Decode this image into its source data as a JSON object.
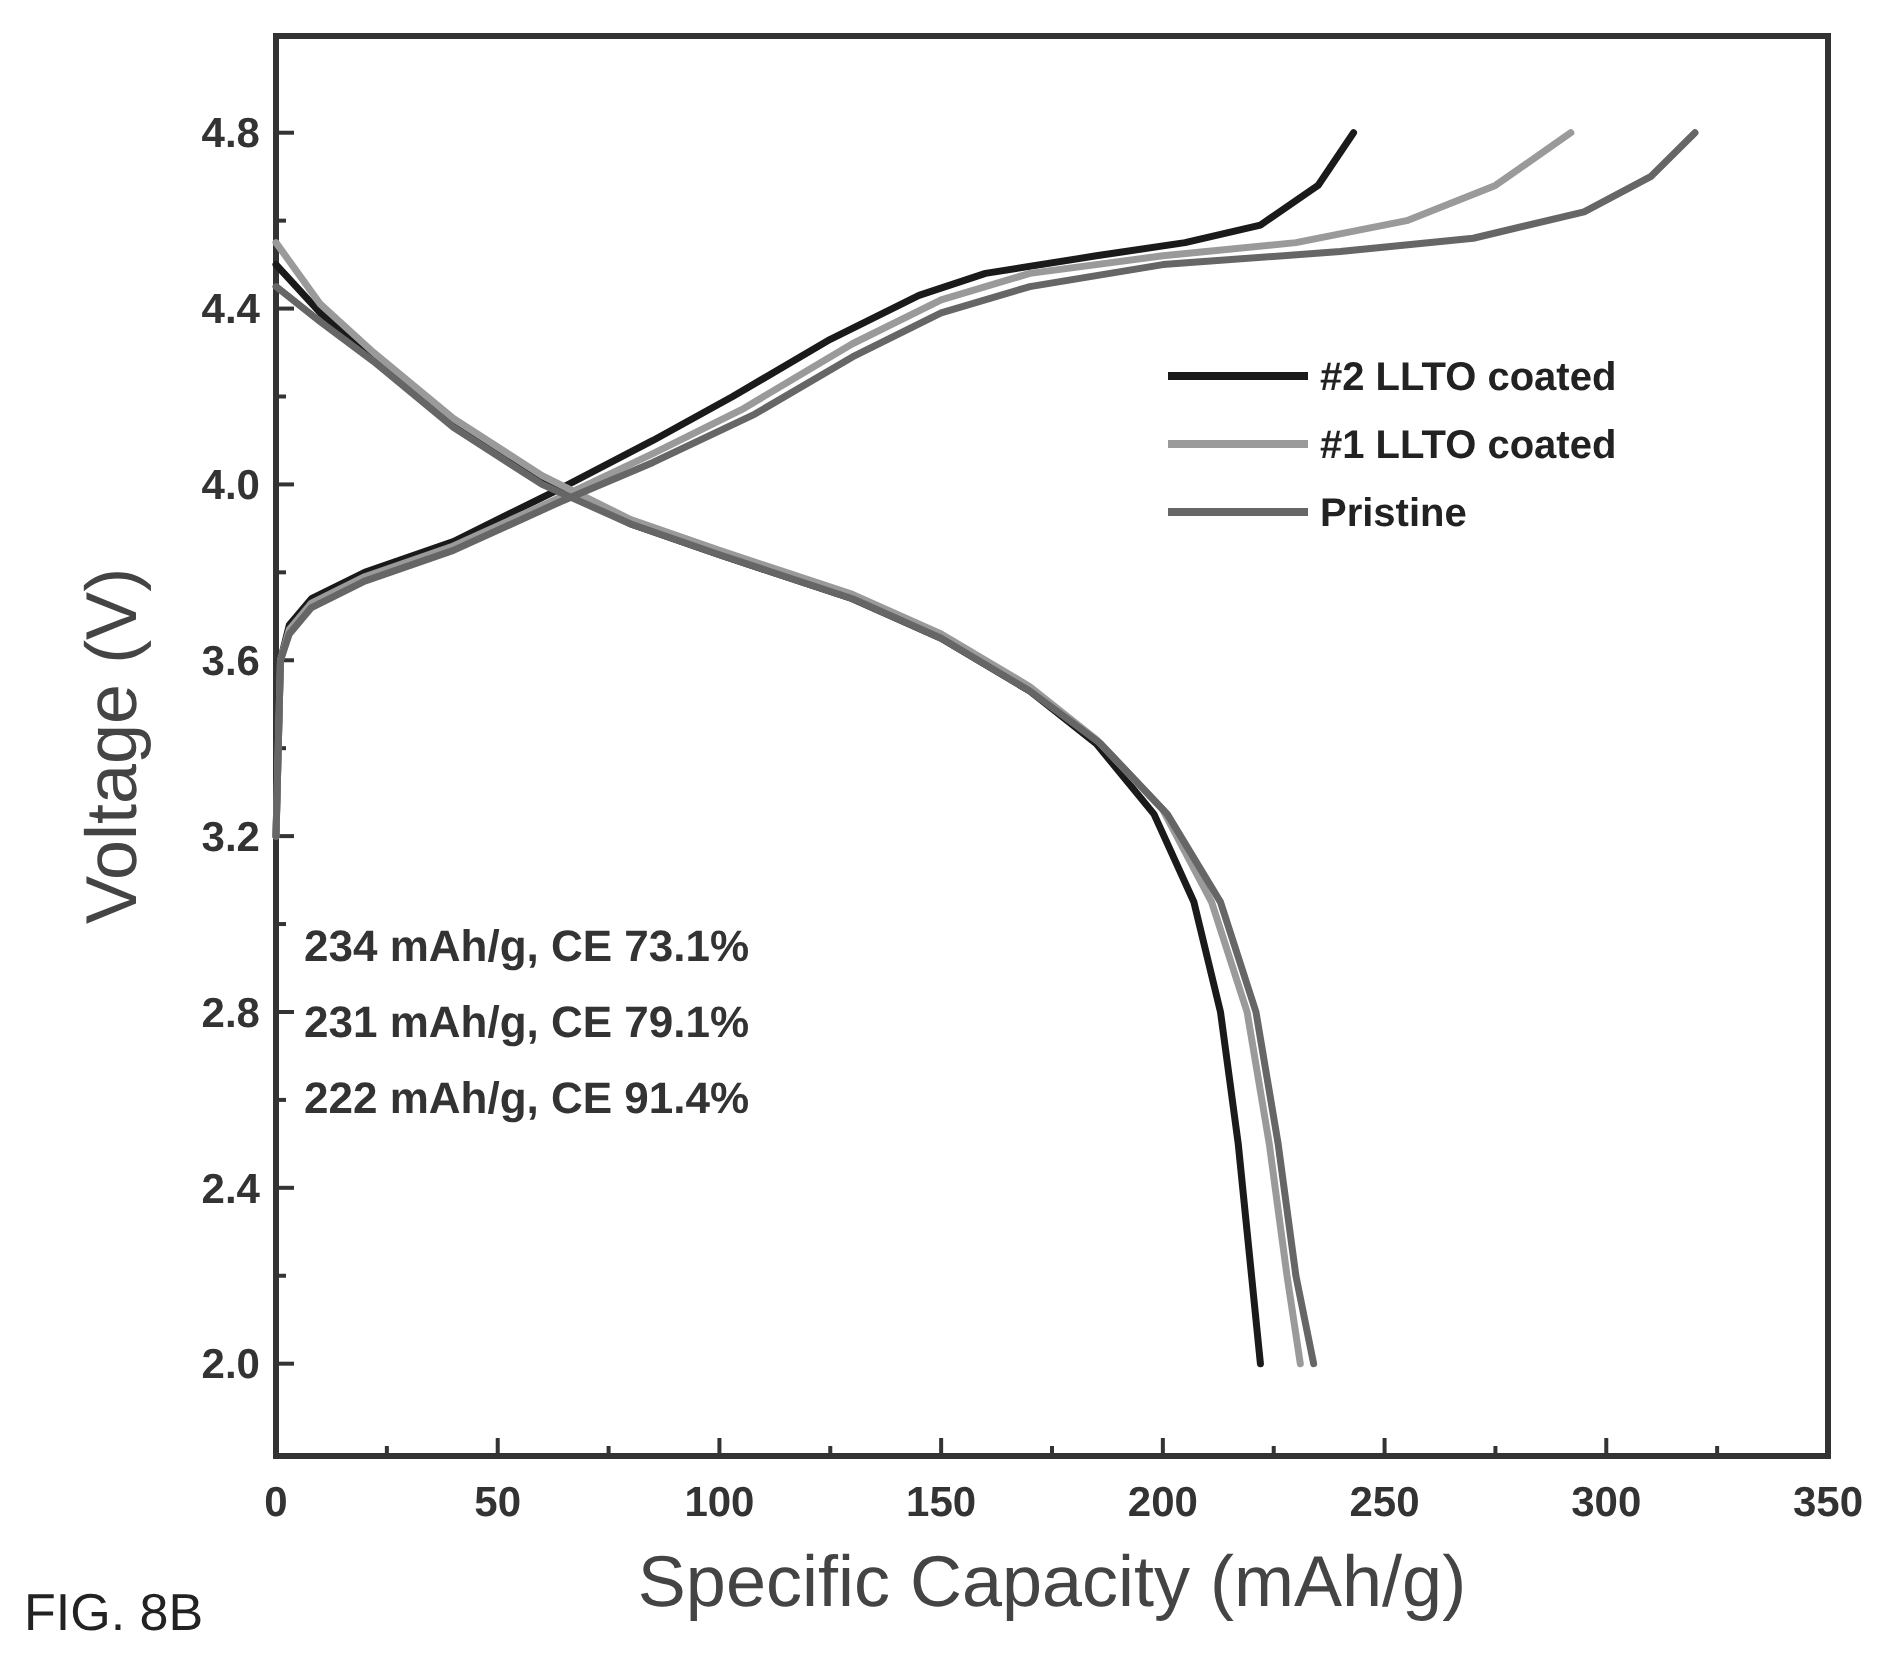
{
  "chart_data": {
    "type": "line",
    "xlabel": "Specific Capacity (mAh/g)",
    "ylabel": "Voltage (V)",
    "xlim": [
      0,
      350
    ],
    "ylim": [
      1.79,
      5.02
    ],
    "xticks": [
      0,
      {
        "value": 25,
        "label": null
      },
      50,
      {
        "value": 75,
        "label": null
      },
      100,
      {
        "value": 125,
        "label": null
      },
      150,
      {
        "value": 175,
        "label": null
      },
      200,
      {
        "value": 225,
        "label": null
      },
      250,
      {
        "value": 275,
        "label": null
      },
      300,
      {
        "value": 325,
        "label": null
      },
      350
    ],
    "yticks": [
      {
        "value": 2.0,
        "label": "2.0"
      },
      {
        "value": 2.2,
        "label": null
      },
      {
        "value": 2.4,
        "label": "2.4"
      },
      {
        "value": 2.6,
        "label": null
      },
      {
        "value": 2.8,
        "label": "2.8"
      },
      {
        "value": 3.0,
        "label": null
      },
      {
        "value": 3.2,
        "label": "3.2"
      },
      {
        "value": 3.4,
        "label": null
      },
      {
        "value": 3.6,
        "label": "3.6"
      },
      {
        "value": 3.8,
        "label": null
      },
      {
        "value": 4.0,
        "label": "4.0"
      },
      {
        "value": 4.2,
        "label": null
      },
      {
        "value": 4.4,
        "label": "4.4"
      },
      {
        "value": 4.6,
        "label": null
      },
      {
        "value": 4.8,
        "label": "4.8"
      }
    ],
    "grid": false,
    "legend": "top right",
    "line_style": "solid",
    "marker": "none",
    "series": [
      {
        "name": "#2 LLTO coated",
        "color": "#1a1a1a",
        "x": [
          0,
          1,
          3,
          8,
          20,
          40,
          64,
          85,
          103,
          125,
          145,
          160,
          185,
          205,
          222,
          235,
          243,
          null,
          0,
          10,
          22,
          40,
          60,
          80,
          100,
          130,
          150,
          170,
          185,
          198,
          207,
          213,
          217,
          220,
          222
        ],
        "values": [
          3.2,
          3.6,
          3.68,
          3.74,
          3.8,
          3.87,
          3.99,
          4.1,
          4.2,
          4.33,
          4.43,
          4.48,
          4.52,
          4.55,
          4.59,
          4.68,
          4.8,
          null,
          4.5,
          4.39,
          4.29,
          4.14,
          4.01,
          3.91,
          3.84,
          3.74,
          3.65,
          3.53,
          3.41,
          3.25,
          3.05,
          2.8,
          2.5,
          2.2,
          2.0
        ]
      },
      {
        "name": "#1 LLTO coated",
        "color": "#9a9a9a",
        "x": [
          0,
          1,
          3,
          8,
          20,
          40,
          64,
          85,
          105,
          130,
          150,
          170,
          200,
          230,
          255,
          275,
          292,
          null,
          0,
          10,
          22,
          40,
          60,
          80,
          100,
          130,
          150,
          170,
          185,
          200,
          211,
          219,
          224,
          228,
          231
        ],
        "values": [
          3.2,
          3.6,
          3.67,
          3.73,
          3.79,
          3.86,
          3.97,
          4.07,
          4.17,
          4.32,
          4.42,
          4.48,
          4.52,
          4.55,
          4.6,
          4.68,
          4.8,
          null,
          4.55,
          4.41,
          4.3,
          4.15,
          4.02,
          3.92,
          3.85,
          3.75,
          3.66,
          3.54,
          3.42,
          3.26,
          3.05,
          2.8,
          2.5,
          2.2,
          2.0
        ]
      },
      {
        "name": "Pristine",
        "color": "#666666",
        "x": [
          0,
          1,
          3,
          8,
          20,
          40,
          64,
          85,
          108,
          130,
          150,
          170,
          200,
          240,
          270,
          295,
          310,
          320,
          null,
          0,
          10,
          22,
          40,
          60,
          80,
          100,
          130,
          150,
          170,
          186,
          201,
          213,
          221,
          226,
          230,
          234
        ],
        "values": [
          3.2,
          3.6,
          3.66,
          3.72,
          3.78,
          3.85,
          3.96,
          4.05,
          4.16,
          4.29,
          4.39,
          4.45,
          4.5,
          4.53,
          4.56,
          4.62,
          4.7,
          4.8,
          null,
          4.45,
          4.37,
          4.28,
          4.13,
          4.0,
          3.91,
          3.84,
          3.74,
          3.65,
          3.53,
          3.41,
          3.25,
          3.05,
          2.8,
          2.5,
          2.2,
          2.0
        ]
      }
    ],
    "annotations": [
      "234 mAh/g, CE 73.1%",
      "231 mAh/g, CE 79.1%",
      "222 mAh/g, CE 91.4%",
      "FIG. 8B"
    ]
  }
}
